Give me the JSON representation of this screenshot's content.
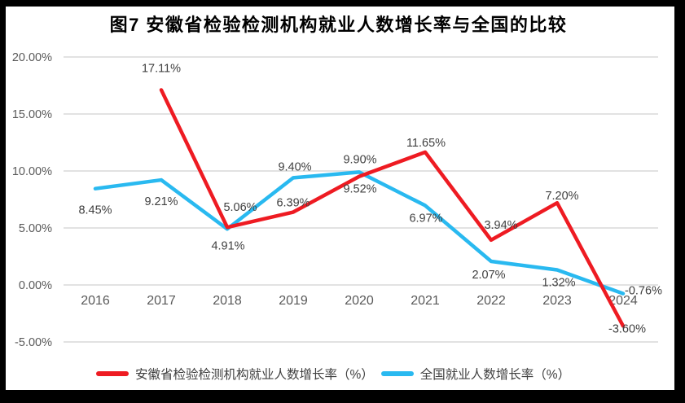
{
  "colors": {
    "grid": "#D9D9D9",
    "axis_text": "#595959",
    "data_label_text": "#404040",
    "title_text": "#000000",
    "background": "#FFFFFF",
    "frame": "#000000"
  },
  "chart_data": {
    "type": "line",
    "title": "图7 安徽省检验检测机构就业人数增长率与全国的比较",
    "categories": [
      "2016",
      "2017",
      "2018",
      "2019",
      "2020",
      "2021",
      "2022",
      "2023",
      "2024"
    ],
    "series": [
      {
        "name": "安徽省检验检测机构就业人数增长率（%）",
        "color": "#EE1B22",
        "values": [
          null,
          17.11,
          5.06,
          6.39,
          9.52,
          11.65,
          3.94,
          7.2,
          -3.6
        ],
        "point_labels": [
          "",
          "17.11%",
          "5.06%",
          "6.39%",
          "9.52%",
          "11.65%",
          "3.94%",
          "7.20%",
          "-3.60%"
        ],
        "label_offsets": [
          [
            0,
            0
          ],
          [
            0,
            -22
          ],
          [
            16,
            -20
          ],
          [
            0,
            -7
          ],
          [
            1,
            20
          ],
          [
            1,
            -7
          ],
          [
            12,
            -14
          ],
          [
            6,
            -4
          ],
          [
            5,
            8
          ]
        ]
      },
      {
        "name": "全国就业人数增长率（%）",
        "color": "#29B9F0",
        "values": [
          8.45,
          9.21,
          4.91,
          9.4,
          9.9,
          6.97,
          2.07,
          1.32,
          -0.76
        ],
        "point_labels": [
          "8.45%",
          "9.21%",
          "4.91%",
          "9.40%",
          "9.90%",
          "6.97%",
          "2.07%",
          "1.32%",
          "-0.76%"
        ],
        "label_offsets": [
          [
            0,
            31
          ],
          [
            0,
            31
          ],
          [
            1,
            25
          ],
          [
            2,
            -9
          ],
          [
            1,
            -11
          ],
          [
            1,
            20
          ],
          [
            -3,
            21
          ],
          [
            2,
            20
          ],
          [
            25,
            1
          ]
        ]
      }
    ],
    "y_axis": {
      "tick_labels": [
        "20.00%",
        "15.00%",
        "10.00%",
        "5.00%",
        "0.00%",
        "-5.00%"
      ],
      "tick_values": [
        20,
        15,
        10,
        5,
        0,
        -5
      ],
      "min": -5,
      "max": 20,
      "grid": true
    },
    "legend": {
      "position": "bottom"
    }
  }
}
